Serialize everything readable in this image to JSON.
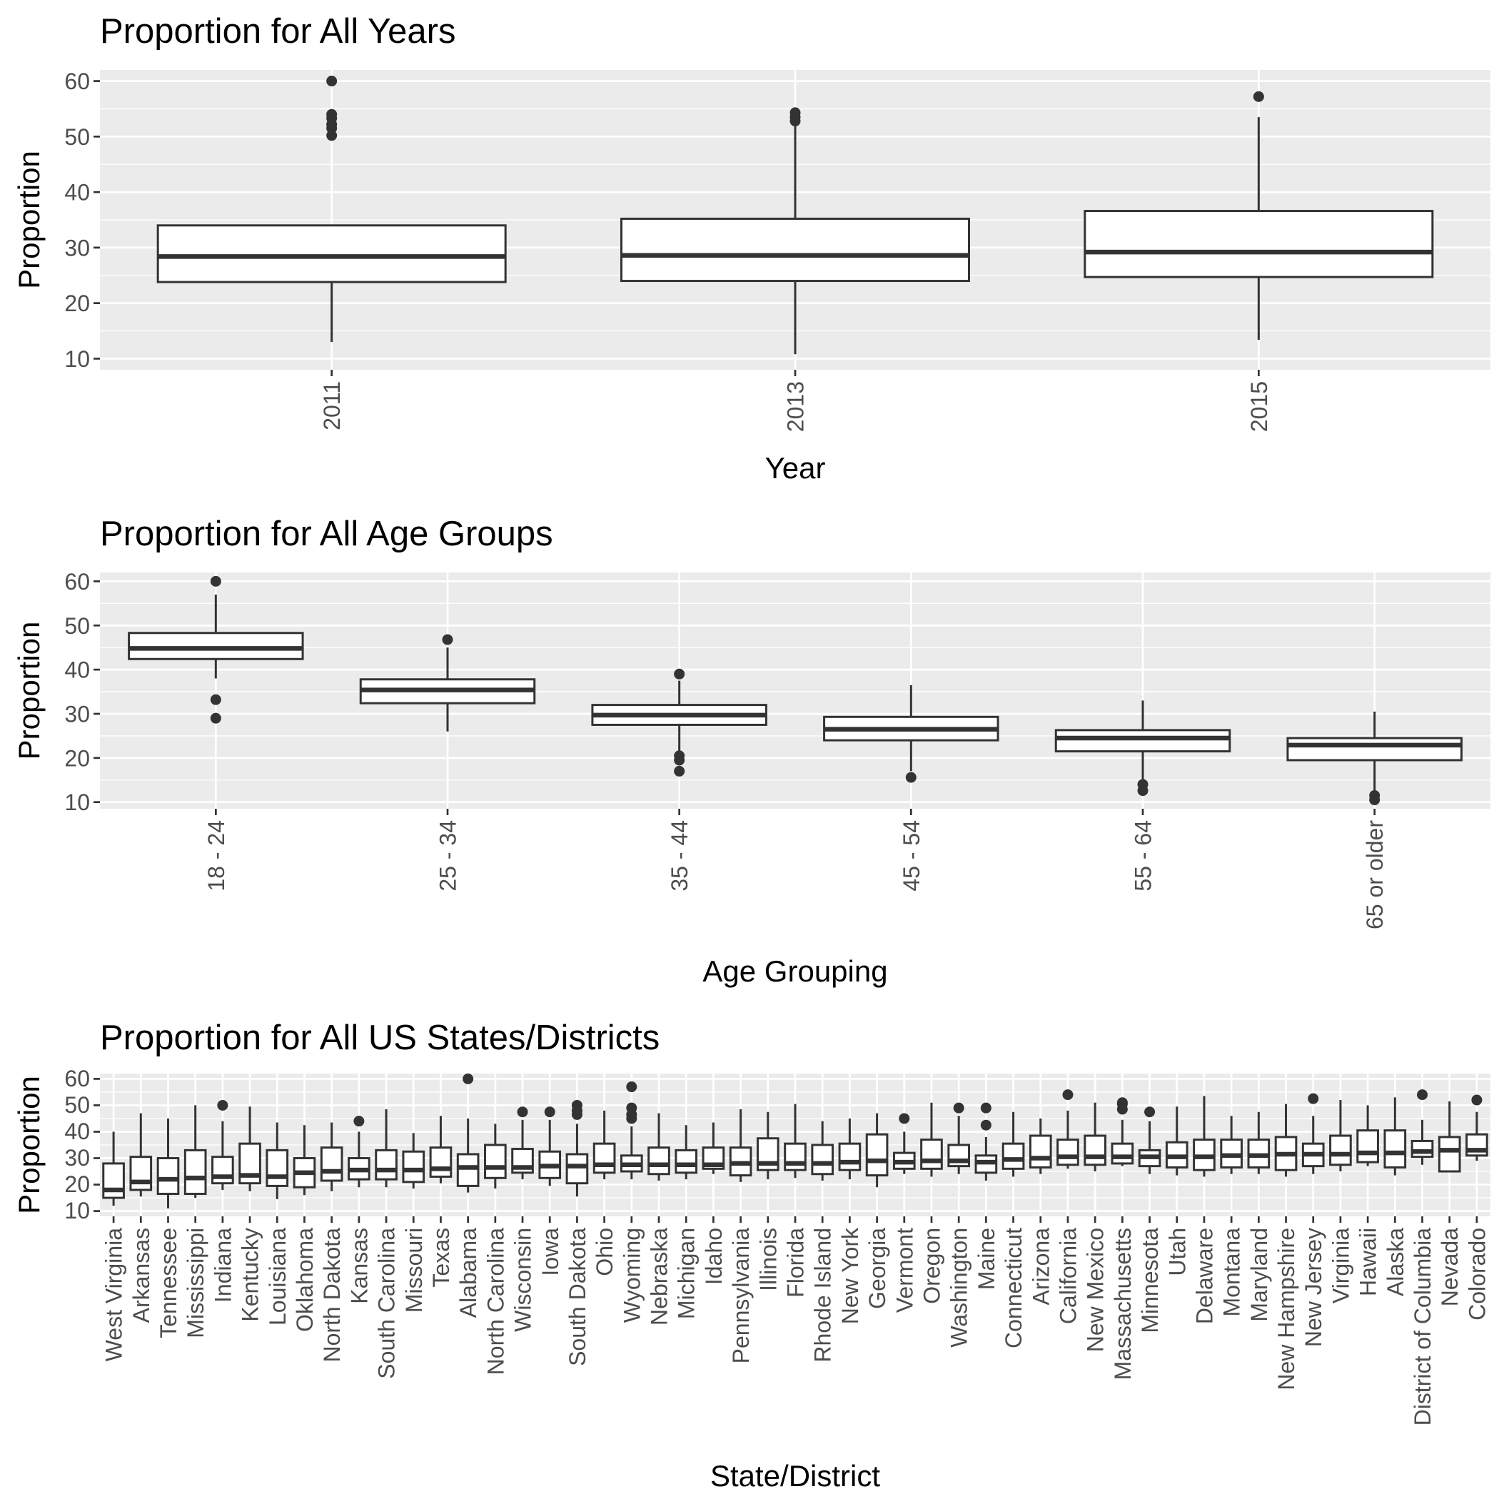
{
  "chart_data": [
    {
      "type": "box",
      "title": "Proportion for All Years",
      "xlabel": "Year",
      "ylabel": "Proportion",
      "ylim": [
        8,
        62
      ],
      "yticks": [
        10,
        20,
        30,
        40,
        50,
        60
      ],
      "x_tick_rotation": -90,
      "categories": [
        "2011",
        "2013",
        "2015"
      ],
      "boxes": [
        {
          "category": "2011",
          "low": 13,
          "q1": 23.8,
          "median": 28.4,
          "q3": 34,
          "high": 34,
          "outliers": [
            50.2,
            51.5,
            52.2,
            53.3,
            54,
            60
          ]
        },
        {
          "category": "2013",
          "low": 10.8,
          "q1": 24,
          "median": 28.6,
          "q3": 35.2,
          "high": 52,
          "outliers": [
            52.8,
            53.5,
            54.3
          ]
        },
        {
          "category": "2015",
          "low": 13.4,
          "q1": 24.7,
          "median": 29.2,
          "q3": 36.6,
          "high": 53.5,
          "outliers": [
            57.2
          ]
        }
      ]
    },
    {
      "type": "box",
      "title": "Proportion for All Age Groups",
      "xlabel": "Age Grouping",
      "ylabel": "Proportion",
      "ylim": [
        8.5,
        62
      ],
      "yticks": [
        10,
        20,
        30,
        40,
        50,
        60
      ],
      "x_tick_rotation": -90,
      "categories": [
        "18 - 24",
        "25 - 34",
        "35 - 44",
        "45 - 54",
        "55 - 64",
        "65 or older"
      ],
      "boxes": [
        {
          "category": "18 - 24",
          "low": 38,
          "q1": 42.4,
          "median": 44.8,
          "q3": 48.3,
          "high": 57,
          "outliers": [
            60,
            33.2,
            29
          ]
        },
        {
          "category": "25 - 34",
          "low": 26,
          "q1": 32.4,
          "median": 35.4,
          "q3": 37.8,
          "high": 45,
          "outliers": [
            46.8
          ]
        },
        {
          "category": "35 - 44",
          "low": 21.5,
          "q1": 27.5,
          "median": 29.7,
          "q3": 32,
          "high": 37.5,
          "outliers": [
            39,
            20.5,
            19.5,
            17
          ]
        },
        {
          "category": "45 - 54",
          "low": 17,
          "q1": 24,
          "median": 26.5,
          "q3": 29.3,
          "high": 36.5,
          "outliers": [
            15.6
          ]
        },
        {
          "category": "55 - 64",
          "low": 15,
          "q1": 21.5,
          "median": 24.5,
          "q3": 26.3,
          "high": 33,
          "outliers": [
            14,
            12.6
          ]
        },
        {
          "category": "65 or older",
          "low": 12.5,
          "q1": 19.5,
          "median": 22.9,
          "q3": 24.5,
          "high": 30.5,
          "outliers": [
            11.5,
            10.5
          ]
        }
      ]
    },
    {
      "type": "box",
      "title": "Proportion for All US States/Districts",
      "xlabel": "State/District",
      "ylabel": "Proportion",
      "ylim": [
        8,
        62
      ],
      "yticks": [
        10,
        20,
        30,
        40,
        50,
        60
      ],
      "x_tick_rotation": -90,
      "categories": [
        "West Virginia",
        "Arkansas",
        "Tennessee",
        "Mississippi",
        "Indiana",
        "Kentucky",
        "Louisiana",
        "Oklahoma",
        "North Dakota",
        "Kansas",
        "South Carolina",
        "Missouri",
        "Texas",
        "Alabama",
        "North Carolina",
        "Wisconsin",
        "Iowa",
        "South Dakota",
        "Ohio",
        "Wyoming",
        "Nebraska",
        "Michigan",
        "Idaho",
        "Pennsylvania",
        "Illinois",
        "Florida",
        "Rhode Island",
        "New York",
        "Georgia",
        "Vermont",
        "Oregon",
        "Washington",
        "Maine",
        "Connecticut",
        "Arizona",
        "California",
        "New Mexico",
        "Massachusetts",
        "Minnesota",
        "Utah",
        "Delaware",
        "Montana",
        "Maryland",
        "New Hampshire",
        "New Jersey",
        "Virginia",
        "Hawaii",
        "Alaska",
        "District of Columbia",
        "Nevada",
        "Colorado"
      ],
      "boxes": [
        {
          "category": "West Virginia",
          "low": 12,
          "q1": 15,
          "median": 18,
          "q3": 28,
          "high": 40,
          "outliers": []
        },
        {
          "category": "Arkansas",
          "low": 15.5,
          "q1": 18,
          "median": 21,
          "q3": 30.5,
          "high": 47,
          "outliers": []
        },
        {
          "category": "Tennessee",
          "low": 11,
          "q1": 16.5,
          "median": 22,
          "q3": 30,
          "high": 45,
          "outliers": []
        },
        {
          "category": "Mississippi",
          "low": 15,
          "q1": 16.5,
          "median": 22.5,
          "q3": 33,
          "high": 50,
          "outliers": []
        },
        {
          "category": "Indiana",
          "low": 18,
          "q1": 20.5,
          "median": 23,
          "q3": 30.5,
          "high": 44,
          "outliers": [
            50
          ]
        },
        {
          "category": "Kentucky",
          "low": 17.5,
          "q1": 20.5,
          "median": 23.5,
          "q3": 35.5,
          "high": 49.5,
          "outliers": []
        },
        {
          "category": "Louisiana",
          "low": 14.5,
          "q1": 19.5,
          "median": 23,
          "q3": 33,
          "high": 43.5,
          "outliers": []
        },
        {
          "category": "Oklahoma",
          "low": 16,
          "q1": 19,
          "median": 24.5,
          "q3": 30,
          "high": 42.5,
          "outliers": []
        },
        {
          "category": "North Dakota",
          "low": 17.5,
          "q1": 21.5,
          "median": 25,
          "q3": 34,
          "high": 43.5,
          "outliers": []
        },
        {
          "category": "Kansas",
          "low": 19,
          "q1": 22,
          "median": 25.5,
          "q3": 30,
          "high": 40,
          "outliers": [
            44
          ]
        },
        {
          "category": "South Carolina",
          "low": 19,
          "q1": 22,
          "median": 25.5,
          "q3": 33,
          "high": 48.5,
          "outliers": []
        },
        {
          "category": "Missouri",
          "low": 18.5,
          "q1": 21,
          "median": 25.5,
          "q3": 32.5,
          "high": 39.5,
          "outliers": []
        },
        {
          "category": "Texas",
          "low": 20.5,
          "q1": 23,
          "median": 26,
          "q3": 34,
          "high": 46,
          "outliers": []
        },
        {
          "category": "Alabama",
          "low": 17,
          "q1": 19.5,
          "median": 26.5,
          "q3": 31.5,
          "high": 45,
          "outliers": [
            60
          ]
        },
        {
          "category": "North Carolina",
          "low": 18.5,
          "q1": 22.5,
          "median": 26.5,
          "q3": 35,
          "high": 43,
          "outliers": []
        },
        {
          "category": "Wisconsin",
          "low": 22,
          "q1": 24.5,
          "median": 26.5,
          "q3": 33.5,
          "high": 44.5,
          "outliers": [
            47.5
          ]
        },
        {
          "category": "Iowa",
          "low": 19.5,
          "q1": 22.5,
          "median": 27,
          "q3": 32.5,
          "high": 44.5,
          "outliers": [
            47.5
          ]
        },
        {
          "category": "South Dakota",
          "low": 15.5,
          "q1": 20.5,
          "median": 27,
          "q3": 31.5,
          "high": 43,
          "outliers": [
            46.5,
            48,
            50
          ]
        },
        {
          "category": "Ohio",
          "low": 22,
          "q1": 24.5,
          "median": 27.5,
          "q3": 35.5,
          "high": 48,
          "outliers": []
        },
        {
          "category": "Wyoming",
          "low": 22,
          "q1": 25,
          "median": 27.5,
          "q3": 31,
          "high": 42,
          "outliers": [
            45,
            46.5,
            49,
            57
          ]
        },
        {
          "category": "Nebraska",
          "low": 21.5,
          "q1": 24,
          "median": 27.5,
          "q3": 34,
          "high": 47,
          "outliers": []
        },
        {
          "category": "Michigan",
          "low": 22,
          "q1": 24.5,
          "median": 27.5,
          "q3": 33,
          "high": 42.5,
          "outliers": []
        },
        {
          "category": "Idaho",
          "low": 24,
          "q1": 26,
          "median": 27.5,
          "q3": 34,
          "high": 43.5,
          "outliers": []
        },
        {
          "category": "Pennsylvania",
          "low": 21,
          "q1": 23.5,
          "median": 28,
          "q3": 34,
          "high": 48.5,
          "outliers": []
        },
        {
          "category": "Illinois",
          "low": 22,
          "q1": 25.5,
          "median": 28,
          "q3": 37.5,
          "high": 47.5,
          "outliers": []
        },
        {
          "category": "Florida",
          "low": 22.5,
          "q1": 25.5,
          "median": 28,
          "q3": 35.5,
          "high": 50.5,
          "outliers": []
        },
        {
          "category": "Rhode Island",
          "low": 21.5,
          "q1": 24,
          "median": 28,
          "q3": 35,
          "high": 44,
          "outliers": []
        },
        {
          "category": "New York",
          "low": 22,
          "q1": 25.5,
          "median": 28.5,
          "q3": 35.5,
          "high": 45,
          "outliers": []
        },
        {
          "category": "Georgia",
          "low": 19,
          "q1": 23.5,
          "median": 29,
          "q3": 39,
          "high": 47,
          "outliers": []
        },
        {
          "category": "Vermont",
          "low": 24,
          "q1": 26,
          "median": 28.5,
          "q3": 32,
          "high": 40,
          "outliers": [
            45
          ]
        },
        {
          "category": "Oregon",
          "low": 23,
          "q1": 26,
          "median": 29,
          "q3": 37,
          "high": 51,
          "outliers": []
        },
        {
          "category": "Washington",
          "low": 24,
          "q1": 27,
          "median": 29,
          "q3": 35,
          "high": 46,
          "outliers": [
            49
          ]
        },
        {
          "category": "Maine",
          "low": 21.5,
          "q1": 24.5,
          "median": 28.5,
          "q3": 31,
          "high": 38,
          "outliers": [
            42.5,
            49
          ]
        },
        {
          "category": "Connecticut",
          "low": 23,
          "q1": 26,
          "median": 29.5,
          "q3": 35.5,
          "high": 47.5,
          "outliers": []
        },
        {
          "category": "Arizona",
          "low": 24,
          "q1": 26.5,
          "median": 30,
          "q3": 38.5,
          "high": 45,
          "outliers": []
        },
        {
          "category": "California",
          "low": 26,
          "q1": 27.5,
          "median": 30.5,
          "q3": 37,
          "high": 48,
          "outliers": [
            54
          ]
        },
        {
          "category": "New Mexico",
          "low": 25,
          "q1": 27.5,
          "median": 30.5,
          "q3": 38.5,
          "high": 51,
          "outliers": []
        },
        {
          "category": "Massachusetts",
          "low": 27,
          "q1": 28,
          "median": 30.5,
          "q3": 35.5,
          "high": 44.5,
          "outliers": [
            48.5,
            50.5,
            51
          ]
        },
        {
          "category": "Minnesota",
          "low": 24,
          "q1": 27,
          "median": 30.5,
          "q3": 33,
          "high": 44,
          "outliers": [
            47.5
          ]
        },
        {
          "category": "Utah",
          "low": 23.5,
          "q1": 26.5,
          "median": 30.5,
          "q3": 36,
          "high": 49.5,
          "outliers": []
        },
        {
          "category": "Delaware",
          "low": 23,
          "q1": 25.5,
          "median": 30.5,
          "q3": 37,
          "high": 53.5,
          "outliers": []
        },
        {
          "category": "Montana",
          "low": 24,
          "q1": 26.5,
          "median": 31,
          "q3": 37,
          "high": 46,
          "outliers": []
        },
        {
          "category": "Maryland",
          "low": 24,
          "q1": 26.5,
          "median": 31,
          "q3": 37,
          "high": 47.5,
          "outliers": []
        },
        {
          "category": "New Hampshire",
          "low": 23,
          "q1": 25.5,
          "median": 31.5,
          "q3": 38,
          "high": 50.5,
          "outliers": []
        },
        {
          "category": "New Jersey",
          "low": 24,
          "q1": 27,
          "median": 31.5,
          "q3": 35.5,
          "high": 46,
          "outliers": [
            52.5
          ]
        },
        {
          "category": "Virginia",
          "low": 25,
          "q1": 27.5,
          "median": 31.5,
          "q3": 38.5,
          "high": 52,
          "outliers": []
        },
        {
          "category": "Hawaii",
          "low": 27,
          "q1": 28.5,
          "median": 32,
          "q3": 40.5,
          "high": 50,
          "outliers": []
        },
        {
          "category": "Alaska",
          "low": 23.5,
          "q1": 26.5,
          "median": 32,
          "q3": 40.5,
          "high": 53,
          "outliers": []
        },
        {
          "category": "District of Columbia",
          "low": 27.5,
          "q1": 30.5,
          "median": 32.5,
          "q3": 36.5,
          "high": 44.5,
          "outliers": [
            54
          ]
        },
        {
          "category": "Nevada",
          "low": 25,
          "q1": 25,
          "median": 33,
          "q3": 38,
          "high": 51.5,
          "outliers": []
        },
        {
          "category": "Colorado",
          "low": 29,
          "q1": 31,
          "median": 33,
          "q3": 39,
          "high": 47.5,
          "outliers": [
            52
          ]
        }
      ]
    }
  ]
}
